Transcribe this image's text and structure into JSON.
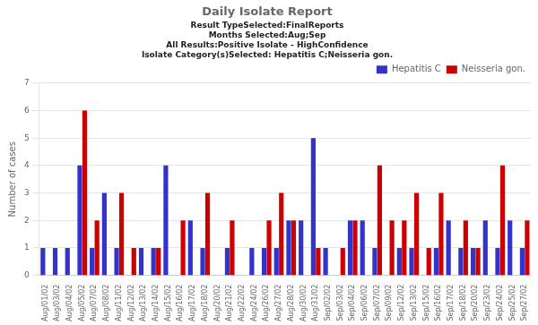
{
  "chart_data": {
    "type": "bar",
    "title": "Daily Isolate Report",
    "subtitle": [
      "Result TypeSelected:FinalReports",
      "Months Selected:Aug;Sep",
      "All Results:Positive Isolate - HighConfidence",
      "Isolate Category(s)Selected: Hepatitis C;Neisseria gon."
    ],
    "ylabel": "Number of cases",
    "categories": [
      "Aug/01/02",
      "Aug/03/02",
      "Aug/04/02",
      "Aug/05/02",
      "Aug/07/02",
      "Aug/08/02",
      "Aug/11/02",
      "Aug/12/02",
      "Aug/13/02",
      "Aug/14/02",
      "Aug/15/02",
      "Aug/16/02",
      "Aug/17/02",
      "Aug/18/02",
      "Aug/20/02",
      "Aug/21/02",
      "Aug/22/02",
      "Aug/24/02",
      "Aug/26/02",
      "Aug/27/02",
      "Aug/28/02",
      "Aug/30/02",
      "Aug/31/02",
      "Sep/02/02",
      "Sep/03/02",
      "Sep/04/02",
      "Sep/06/02",
      "Sep/07/02",
      "Sep/09/02",
      "Sep/12/02",
      "Sep/13/02",
      "Sep/15/02",
      "Sep/16/02",
      "Sep/17/02",
      "Sep/18/02",
      "Sep/20/02",
      "Sep/23/02",
      "Sep/24/02",
      "Sep/25/02",
      "Sep/27/02"
    ],
    "series": [
      {
        "name": "Hepatitis C",
        "color": "#3333cc",
        "values": [
          1,
          1,
          1,
          4,
          1,
          3,
          1,
          0,
          1,
          1,
          4,
          0,
          2,
          1,
          0,
          1,
          0,
          1,
          1,
          1,
          2,
          2,
          5,
          1,
          0,
          2,
          2,
          1,
          0,
          1,
          1,
          0,
          1,
          2,
          1,
          1,
          2,
          1,
          2,
          1
        ]
      },
      {
        "name": "Neisseria gon.",
        "color": "#cc0000",
        "values": [
          0,
          0,
          0,
          6,
          2,
          0,
          3,
          1,
          0,
          1,
          0,
          2,
          0,
          3,
          0,
          2,
          0,
          0,
          2,
          3,
          2,
          0,
          1,
          0,
          1,
          2,
          0,
          4,
          2,
          2,
          3,
          1,
          3,
          0,
          2,
          1,
          0,
          4,
          0,
          2
        ]
      }
    ],
    "ylim": [
      0,
      7
    ],
    "yticks": [
      0,
      1,
      2,
      3,
      4,
      5,
      6,
      7
    ],
    "grid": true,
    "legend": "upper right"
  }
}
